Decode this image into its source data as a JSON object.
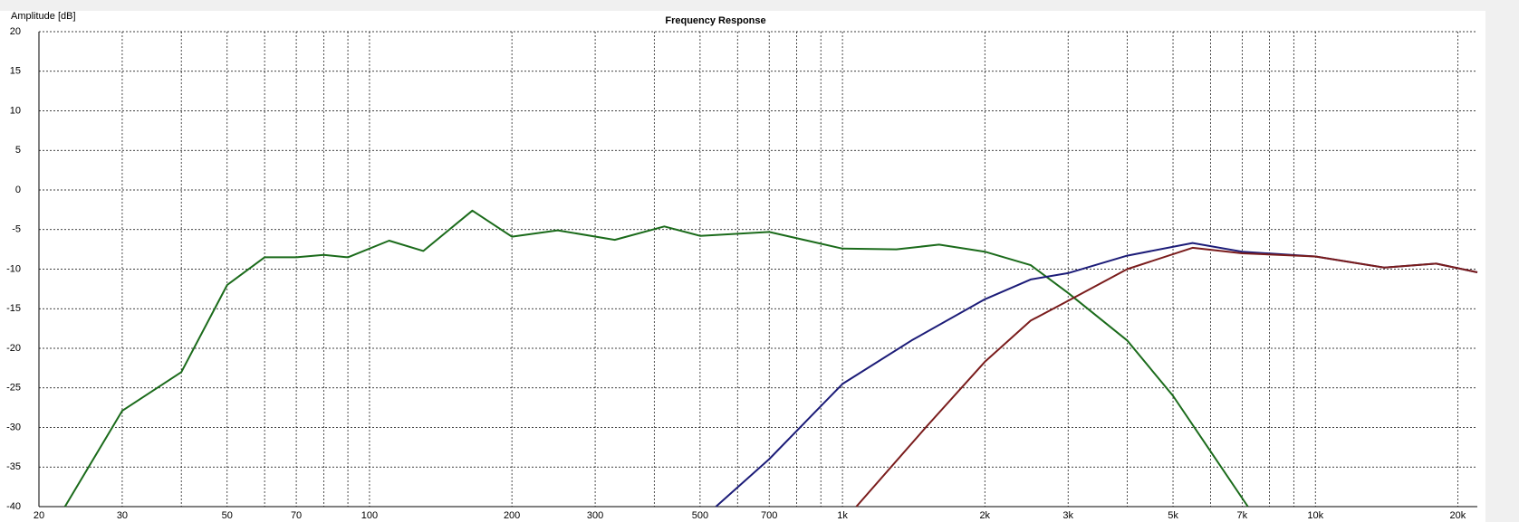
{
  "chart_data": {
    "type": "line",
    "title": "Frequency Response",
    "y_label": "Amplitude [dB]",
    "log_x": true,
    "grid": true,
    "xlim": [
      20,
      22000
    ],
    "ylim": [
      -40,
      20
    ],
    "xticks": [
      20,
      30,
      50,
      70,
      100,
      200,
      300,
      500,
      700,
      {
        "value": 1000,
        "label": "1k"
      },
      {
        "value": 2000,
        "label": "2k"
      },
      {
        "value": 3000,
        "label": "3k"
      },
      {
        "value": 5000,
        "label": "5k"
      },
      {
        "value": 7000,
        "label": "7k"
      },
      {
        "value": 10000,
        "label": "10k"
      },
      {
        "value": 20000,
        "label": "20k"
      }
    ],
    "xminor": [
      40,
      60,
      80,
      90,
      400,
      600,
      800,
      900,
      4000,
      6000,
      8000,
      9000
    ],
    "yticks": [
      -40,
      -35,
      -30,
      -25,
      -20,
      -15,
      -10,
      -5,
      0,
      5,
      10,
      15,
      20
    ],
    "series": [
      {
        "color": "#1b6b1b",
        "x": [
          22.7,
          30,
          40,
          50,
          60,
          70,
          80,
          90,
          110,
          130,
          165,
          200,
          250,
          330,
          420,
          500,
          700,
          1000,
          1300,
          1600,
          2000,
          2500,
          3000,
          4000,
          5000,
          6000,
          7200
        ],
        "values": [
          -40,
          -27.9,
          -23,
          -12,
          -8.5,
          -8.5,
          -8.2,
          -8.5,
          -6.4,
          -7.7,
          -2.6,
          -5.9,
          -5.1,
          -6.3,
          -4.6,
          -5.8,
          -5.3,
          -7.4,
          -7.5,
          -6.9,
          -7.8,
          -9.5,
          -13,
          -19,
          -26,
          -33,
          -40
        ]
      },
      {
        "color": "#1c1c78",
        "x": [
          540,
          700,
          1000,
          1400,
          2000,
          2500,
          3000,
          4000,
          5500,
          7000,
          10000,
          14000,
          18000,
          22000
        ],
        "values": [
          -40,
          -34,
          -24.5,
          -19,
          -13.8,
          -11.3,
          -10.5,
          -8.3,
          -6.7,
          -7.8,
          -8.4,
          -9.8,
          -9.3,
          -10.4
        ]
      },
      {
        "color": "#7a1c1c",
        "x": [
          1070,
          1500,
          2000,
          2500,
          3000,
          4000,
          5500,
          7000,
          10000,
          14000,
          18000,
          22000
        ],
        "values": [
          -40,
          -30,
          -21.7,
          -16.5,
          -14,
          -10,
          -7.3,
          -8,
          -8.4,
          -9.8,
          -9.3,
          -10.4
        ]
      }
    ]
  }
}
